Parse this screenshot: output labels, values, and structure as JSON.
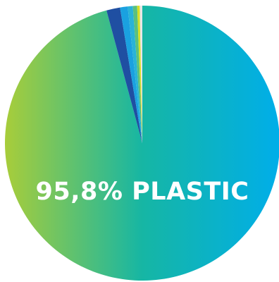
{
  "chart_data": {
    "type": "pie",
    "start_angle_deg": 0,
    "direction": "clockwise",
    "slices": [
      {
        "value": 95.8,
        "colors": [
          "#00aee9",
          "#16b6a4",
          "#a8cd3a"
        ]
      },
      {
        "value": 1.6,
        "color": "#1f4fa2"
      },
      {
        "value": 0.9,
        "color": "#1aa1e0"
      },
      {
        "value": 0.6,
        "color": "#29b3d8"
      },
      {
        "value": 0.5,
        "color": "#5bc07e"
      },
      {
        "value": 0.3,
        "color": "#d7df23"
      },
      {
        "value": 0.3,
        "color": "#e7e7e7"
      }
    ],
    "annotation": "95,8% PLASTIC"
  }
}
